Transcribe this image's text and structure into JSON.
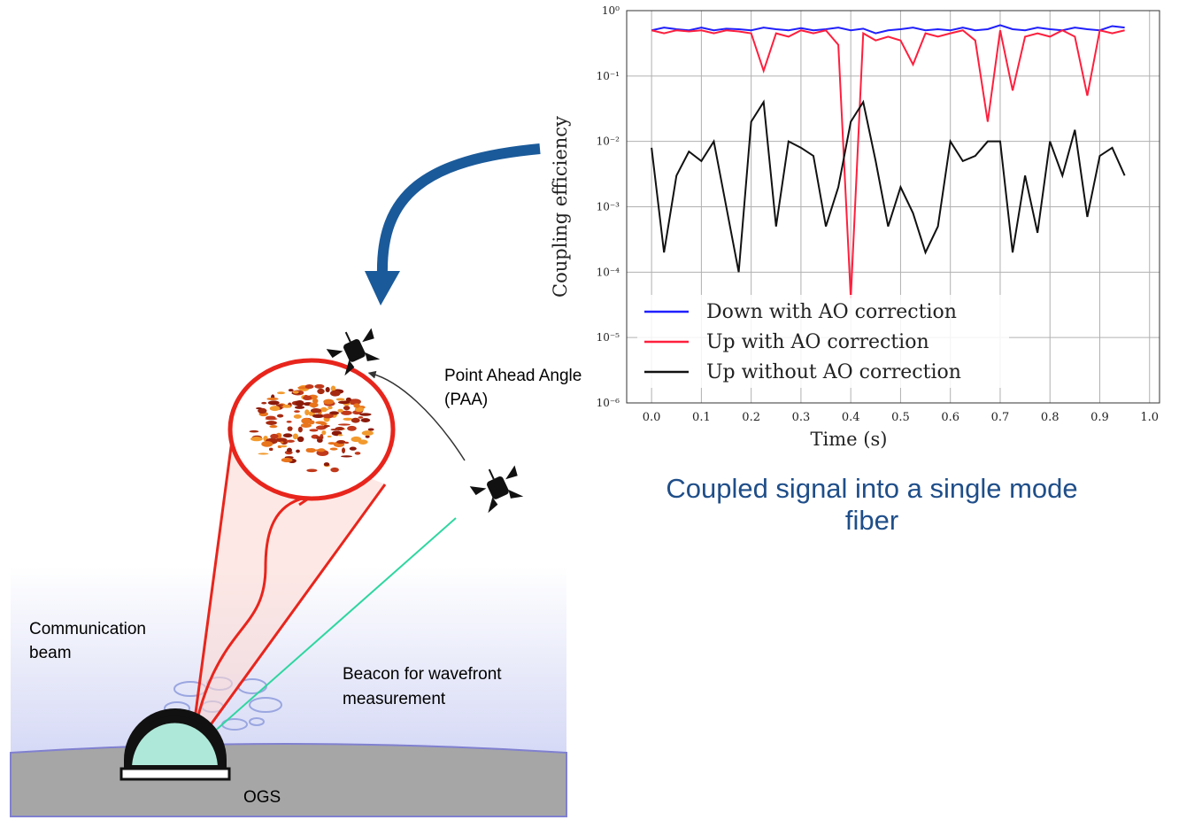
{
  "chart_data": {
    "type": "line",
    "y_label": "Coupling efficiency",
    "x_label": "Time (s)",
    "xlim": [
      -0.05,
      1.02
    ],
    "ylim": [
      1e-06,
      1
    ],
    "log_y": true,
    "grid": true,
    "legend": "lower left",
    "xticks": [
      {
        "value": 0,
        "label": "0.0"
      },
      0.1,
      0.2,
      0.3,
      0.4,
      0.5,
      0.6,
      0.7,
      0.8,
      0.9,
      {
        "value": 1,
        "label": "1.0"
      }
    ],
    "yticks": [
      {
        "value": 1e-06,
        "label": "10⁻⁶"
      },
      {
        "value": 1e-05,
        "label": "10⁻⁵"
      },
      {
        "value": 0.0001,
        "label": "10⁻⁴"
      },
      {
        "value": 0.001,
        "label": "10⁻³"
      },
      {
        "value": 0.01,
        "label": "10⁻²"
      },
      {
        "value": 0.1,
        "label": "10⁻¹"
      },
      {
        "value": 1,
        "label": "10⁰"
      }
    ],
    "x": [
      0,
      0.025,
      0.05,
      0.075,
      0.1,
      0.125,
      0.15,
      0.175,
      0.2,
      0.225,
      0.25,
      0.275,
      0.3,
      0.325,
      0.35,
      0.375,
      0.4,
      0.425,
      0.45,
      0.475,
      0.5,
      0.525,
      0.55,
      0.575,
      0.6,
      0.625,
      0.65,
      0.675,
      0.7,
      0.725,
      0.75,
      0.775,
      0.8,
      0.825,
      0.85,
      0.875,
      0.9,
      0.925,
      0.95
    ],
    "series": [
      {
        "name": "Down with AO correction",
        "color": "#1f1fff",
        "values": [
          0.5,
          0.55,
          0.52,
          0.5,
          0.55,
          0.5,
          0.53,
          0.52,
          0.5,
          0.55,
          0.52,
          0.5,
          0.54,
          0.5,
          0.52,
          0.55,
          0.5,
          0.53,
          0.45,
          0.5,
          0.52,
          0.55,
          0.5,
          0.52,
          0.5,
          0.55,
          0.5,
          0.52,
          0.6,
          0.52,
          0.5,
          0.55,
          0.52,
          0.5,
          0.55,
          0.52,
          0.5,
          0.58,
          0.55
        ]
      },
      {
        "name": "Up with AO correction",
        "color": "#ff1f3d",
        "values": [
          0.5,
          0.45,
          0.5,
          0.48,
          0.5,
          0.45,
          0.5,
          0.48,
          0.45,
          0.12,
          0.45,
          0.4,
          0.5,
          0.45,
          0.5,
          0.3,
          4e-05,
          0.45,
          0.35,
          0.4,
          0.35,
          0.15,
          0.45,
          0.4,
          0.45,
          0.5,
          0.35,
          0.02,
          0.5,
          0.06,
          0.4,
          0.45,
          0.4,
          0.5,
          0.4,
          0.05,
          0.5,
          0.45,
          0.5
        ]
      },
      {
        "name": "Up without AO correction",
        "color": "#111111",
        "values": [
          0.008,
          0.0002,
          0.003,
          0.007,
          0.005,
          0.01,
          0.001,
          0.0001,
          0.02,
          0.04,
          0.0005,
          0.01,
          0.008,
          0.006,
          0.0005,
          0.002,
          0.02,
          0.04,
          0.005,
          0.0005,
          0.002,
          0.0008,
          0.0002,
          0.0005,
          0.01,
          0.005,
          0.006,
          0.01,
          0.01,
          0.0002,
          0.003,
          0.0004,
          0.01,
          0.003,
          0.015,
          0.0007,
          0.006,
          0.008,
          0.003
        ]
      }
    ]
  },
  "caption": "Coupled signal into a single mode fiber",
  "diagram": {
    "paa_label": [
      "Point Ahead Angle",
      "(PAA)"
    ],
    "beam_label": [
      "Communication",
      "beam"
    ],
    "beacon_label": [
      "Beacon for wavefront",
      "measurement"
    ],
    "ogs_label": "OGS"
  }
}
